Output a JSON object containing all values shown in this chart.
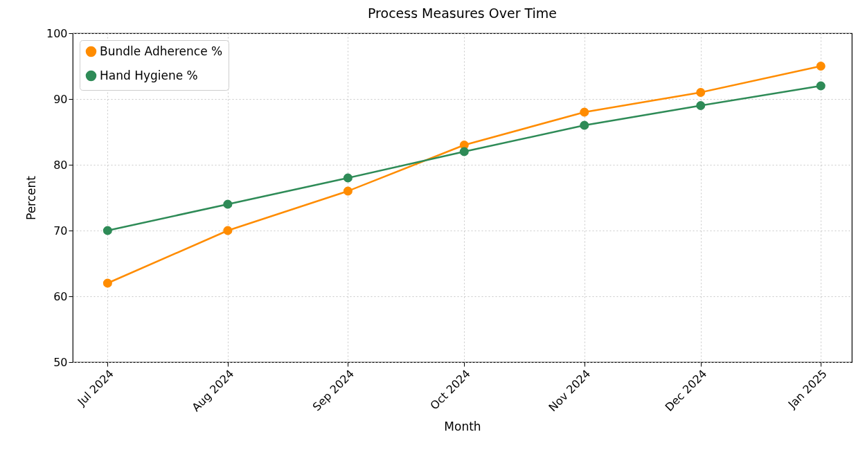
{
  "chart_data": {
    "type": "line",
    "title": "Process Measures Over Time",
    "xlabel": "Month",
    "ylabel": "Percent",
    "x": [
      "2024-07",
      "2024-08",
      "2024-09",
      "2024-10",
      "2024-11",
      "2024-12",
      "2025-01"
    ],
    "series": [
      {
        "name": "Bundle Adherence %",
        "color": "#ff8c00",
        "values": [
          62,
          70,
          76,
          83,
          88,
          91,
          95
        ]
      },
      {
        "name": "Hand Hygiene %",
        "color": "#2e8b57",
        "values": [
          70,
          74,
          78,
          82,
          86,
          89,
          92
        ]
      }
    ],
    "xlim": [
      "2024-06-22",
      "2025-01-09"
    ],
    "xticks": [
      {
        "value": "2024-07",
        "label": "Jul 2024"
      },
      {
        "value": "2024-08",
        "label": "Aug 2024"
      },
      {
        "value": "2024-09",
        "label": "Sep 2024"
      },
      {
        "value": "2024-10",
        "label": "Oct 2024"
      },
      {
        "value": "2024-11",
        "label": "Nov 2024"
      },
      {
        "value": "2024-12",
        "label": "Dec 2024"
      },
      {
        "value": "2025-01",
        "label": "Jan 2025"
      }
    ],
    "ylim": [
      50,
      100
    ],
    "yticks": [
      50,
      60,
      70,
      80,
      90,
      100
    ],
    "grid": true,
    "legend": "top left",
    "marker": "circle",
    "line_style": "solid"
  }
}
